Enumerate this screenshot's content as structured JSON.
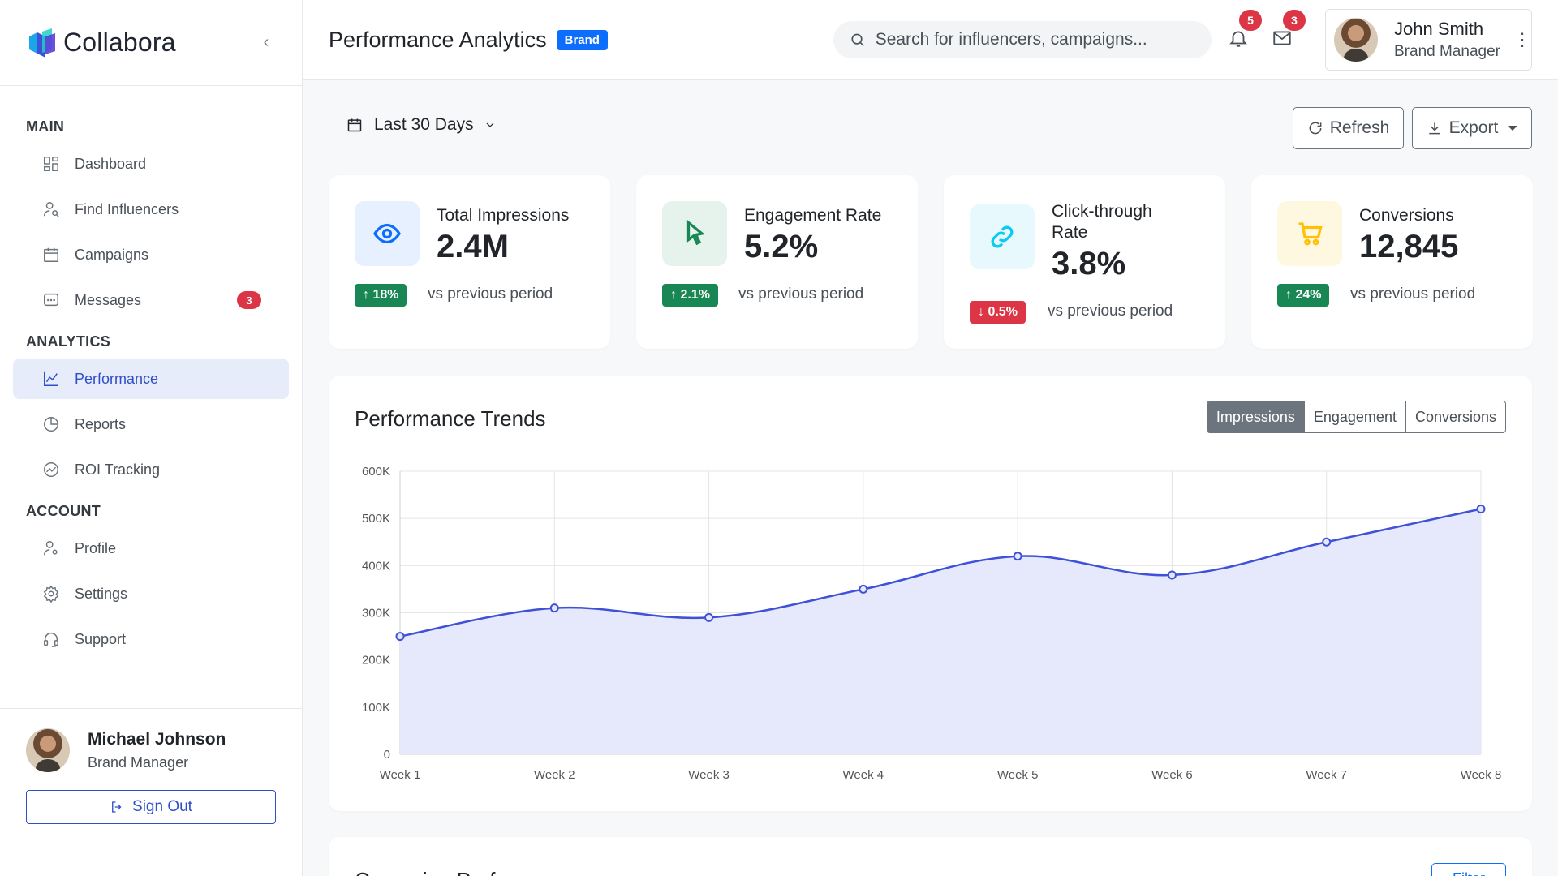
{
  "app": {
    "name": "Collabora",
    "collapse_icon": "‹"
  },
  "sidebar": {
    "sections": [
      {
        "label": "MAIN"
      },
      {
        "label": "ANALYTICS"
      },
      {
        "label": "ACCOUNT"
      }
    ],
    "items": [
      {
        "label": "Dashboard",
        "icon": "dashboard-icon"
      },
      {
        "label": "Find Influencers",
        "icon": "user-search-icon"
      },
      {
        "label": "Campaigns",
        "icon": "calendar-icon"
      },
      {
        "label": "Messages",
        "icon": "chat-icon",
        "badge": "3"
      },
      {
        "label": "Performance",
        "icon": "line-chart-icon",
        "active": true
      },
      {
        "label": "Reports",
        "icon": "pie-chart-icon"
      },
      {
        "label": "ROI Tracking",
        "icon": "trend-icon"
      },
      {
        "label": "Profile",
        "icon": "user-gear-icon"
      },
      {
        "label": "Settings",
        "icon": "gear-icon"
      },
      {
        "label": "Support",
        "icon": "headset-icon"
      }
    ],
    "footer": {
      "name": "Michael Johnson",
      "role": "Brand Manager",
      "signout_label": "Sign Out"
    }
  },
  "header": {
    "title": "Performance Analytics",
    "badge": "Brand",
    "search_placeholder": "Search for influencers, campaigns...",
    "notifications_count": "5",
    "messages_count": "3",
    "user": {
      "name": "John Smith",
      "role": "Brand Manager"
    }
  },
  "toolbar": {
    "date_range": "Last 30 Days",
    "refresh_label": "Refresh",
    "export_label": "Export"
  },
  "stats": [
    {
      "label": "Total Impressions",
      "value": "2.4M",
      "delta": "18%",
      "direction": "up",
      "delta_text": "vs previous period",
      "color": "#0d6efd",
      "bg": "#e7f0ff",
      "icon": "eye-icon"
    },
    {
      "label": "Engagement Rate",
      "value": "5.2%",
      "delta": "2.1%",
      "direction": "up",
      "delta_text": "vs previous period",
      "color": "#198754",
      "bg": "#e6f3ec",
      "icon": "cursor-icon"
    },
    {
      "label": "Click-through Rate",
      "value": "3.8%",
      "delta": "0.5%",
      "direction": "down",
      "delta_text": "vs previous period",
      "color": "#0dcaf0",
      "bg": "#e7f9fd",
      "icon": "link-icon"
    },
    {
      "label": "Conversions",
      "value": "12,845",
      "delta": "24%",
      "direction": "up",
      "delta_text": "vs previous period",
      "color": "#ffc107",
      "bg": "#fff8e1",
      "icon": "cart-icon"
    }
  ],
  "trends": {
    "title": "Performance Trends",
    "tabs": [
      "Impressions",
      "Engagement",
      "Conversions"
    ],
    "active_tab": "Impressions"
  },
  "chart_data": {
    "type": "area",
    "categories": [
      "Week 1",
      "Week 2",
      "Week 3",
      "Week 4",
      "Week 5",
      "Week 6",
      "Week 7",
      "Week 8"
    ],
    "series": [
      {
        "values": [
          250000,
          310000,
          290000,
          350000,
          420000,
          380000,
          450000,
          520000
        ],
        "color": "#3f51d6"
      }
    ],
    "ylim": [
      0,
      600000
    ],
    "yticks": [
      0,
      100000,
      200000,
      300000,
      400000,
      500000,
      600000
    ],
    "ytick_labels": [
      "0",
      "100K",
      "200K",
      "300K",
      "400K",
      "500K",
      "600K"
    ],
    "grid": true
  },
  "campaign_section": {
    "title": "Campaign Performance",
    "filter_label": "Filter"
  }
}
